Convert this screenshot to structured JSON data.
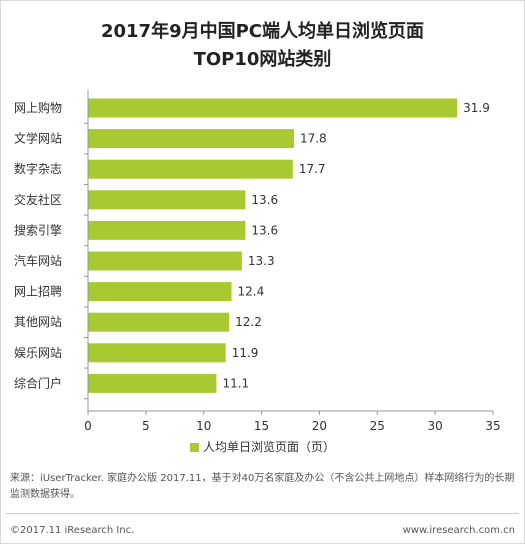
{
  "title_line1": "2017年9月中国PC端人均单日浏览页面",
  "title_line2": "TOP10网站类别",
  "legend_label": "人均单日浏览页面（页）",
  "source": "来源：iUserTracker. 家庭办公版 2017.11，基于对40万名家庭及办公（不含公共上网地点）样本网络行为的长期监测数据获得。",
  "copyright": "©2017.11 iResearch Inc.",
  "website": "www.iresearch.com.cn",
  "colors": {
    "bar": "#a8c932",
    "axis": "#999999",
    "text": "#333333"
  },
  "chart_data": {
    "type": "bar",
    "orientation": "horizontal",
    "title": "2017年9月中国PC端人均单日浏览页面 TOP10网站类别",
    "categories": [
      "网上购物",
      "文学网站",
      "数字杂志",
      "交友社区",
      "搜索引擎",
      "汽车网站",
      "网上招聘",
      "其他网站",
      "娱乐网站",
      "综合门户"
    ],
    "series": [
      {
        "name": "人均单日浏览页面（页）",
        "values": [
          31.9,
          17.8,
          17.7,
          13.6,
          13.6,
          13.3,
          12.4,
          12.2,
          11.9,
          11.1
        ]
      }
    ],
    "value_labels": [
      "31.9",
      "17.8",
      "17.7",
      "13.6",
      "13.6",
      "13.3",
      "12.4",
      "12.2",
      "11.9",
      "11.1"
    ],
    "xlim": [
      0,
      35
    ],
    "xticks": [
      "0",
      "5",
      "10",
      "15",
      "20",
      "25",
      "30",
      "35"
    ],
    "grid": false,
    "legend_position": "bottom"
  }
}
